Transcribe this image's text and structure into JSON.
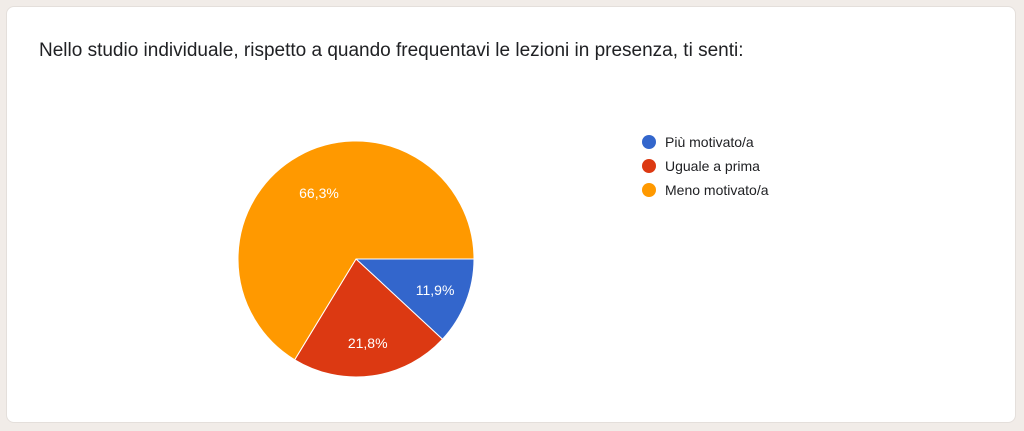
{
  "question": {
    "title": "Nello studio individuale, rispetto a quando frequentavi le lezioni in presenza, ti senti:"
  },
  "chart_data": {
    "type": "pie",
    "title": "",
    "slices": [
      {
        "label": "Più motivato/a",
        "value": 11.9,
        "display": "11,9%",
        "color": "#3366cc"
      },
      {
        "label": "Uguale a prima",
        "value": 21.8,
        "display": "21,8%",
        "color": "#dc3912"
      },
      {
        "label": "Meno motivato/a",
        "value": 66.3,
        "display": "66,3%",
        "color": "#ff9900"
      }
    ],
    "legend_position": "right"
  }
}
